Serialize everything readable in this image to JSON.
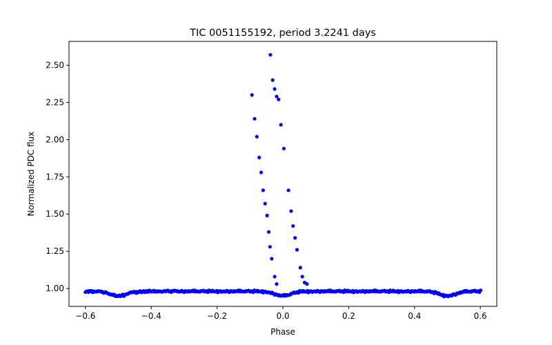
{
  "chart_data": {
    "type": "scatter",
    "title": "TIC 0051155192, period 3.2241 days",
    "xlabel": "Phase",
    "ylabel": "Normalized PDC flux",
    "xlim": [
      -0.65,
      0.65
    ],
    "ylim": [
      0.88,
      2.66
    ],
    "xticks": [
      -0.6,
      -0.4,
      -0.2,
      0.0,
      0.2,
      0.4,
      0.6
    ],
    "xtick_labels": [
      "−0.6",
      "−0.4",
      "−0.2",
      "0.0",
      "0.2",
      "0.4",
      "0.6"
    ],
    "yticks": [
      1.0,
      1.25,
      1.5,
      1.75,
      2.0,
      2.25,
      2.5
    ],
    "ytick_labels": [
      "1.00",
      "1.25",
      "1.50",
      "1.75",
      "2.00",
      "2.25",
      "2.50"
    ],
    "grid": false,
    "marker_color": "#0000ff",
    "baseline": {
      "x_range": [
        -0.6,
        0.6
      ],
      "level": 0.98,
      "dip_centers": [
        -0.5,
        0.0,
        0.5
      ],
      "dip_depth": 0.03,
      "scatter": 0.008,
      "points_per_phase_unit": 400
    },
    "flare_points": [
      {
        "x": -0.094,
        "y": 2.3
      },
      {
        "x": -0.086,
        "y": 2.14
      },
      {
        "x": -0.079,
        "y": 2.02
      },
      {
        "x": -0.072,
        "y": 1.88
      },
      {
        "x": -0.066,
        "y": 1.78
      },
      {
        "x": -0.06,
        "y": 1.66
      },
      {
        "x": -0.054,
        "y": 1.57
      },
      {
        "x": -0.048,
        "y": 1.49
      },
      {
        "x": -0.043,
        "y": 1.38
      },
      {
        "x": -0.039,
        "y": 1.28
      },
      {
        "x": -0.034,
        "y": 1.2
      },
      {
        "x": -0.025,
        "y": 1.08
      },
      {
        "x": -0.019,
        "y": 1.03
      },
      {
        "x": -0.038,
        "y": 2.57
      },
      {
        "x": -0.031,
        "y": 2.4
      },
      {
        "x": -0.025,
        "y": 2.34
      },
      {
        "x": -0.019,
        "y": 2.29
      },
      {
        "x": -0.013,
        "y": 2.27
      },
      {
        "x": -0.006,
        "y": 2.1
      },
      {
        "x": 0.003,
        "y": 1.94
      },
      {
        "x": 0.017,
        "y": 1.66
      },
      {
        "x": 0.025,
        "y": 1.52
      },
      {
        "x": 0.031,
        "y": 1.42
      },
      {
        "x": 0.037,
        "y": 1.34
      },
      {
        "x": 0.043,
        "y": 1.26
      },
      {
        "x": 0.053,
        "y": 1.14
      },
      {
        "x": 0.059,
        "y": 1.08
      },
      {
        "x": 0.066,
        "y": 1.04
      },
      {
        "x": 0.073,
        "y": 1.03
      }
    ]
  }
}
